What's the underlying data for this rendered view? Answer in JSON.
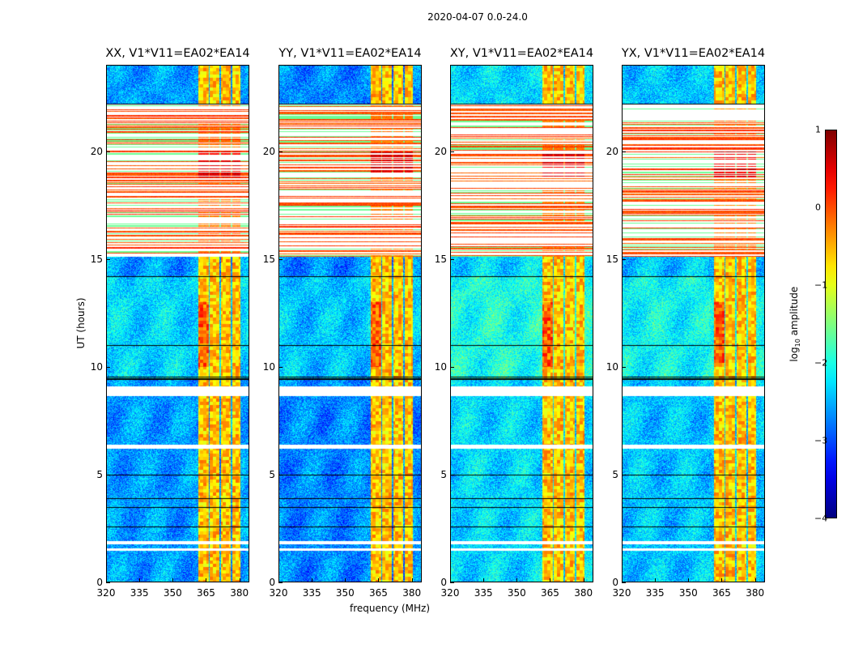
{
  "figure_title": "2020-04-07 0.0-24.0",
  "chart_data": {
    "type": "heatmap",
    "title": "2020-04-07 0.0-24.0",
    "xlabel": "frequency (MHz)",
    "ylabel": "UT (hours)",
    "xlim": [
      320,
      384.5
    ],
    "ylim": [
      0,
      24
    ],
    "xticks": [
      320,
      335,
      350,
      365,
      380
    ],
    "yticks": [
      0,
      5,
      10,
      15,
      20
    ],
    "colormap": "jet",
    "colorbar": {
      "label_main": "log",
      "label_sub": "10",
      "label_rest": " amplitude",
      "range": [
        -4,
        1
      ],
      "ticks": [
        "1",
        "0",
        "−1",
        "−2",
        "−3",
        "−4"
      ]
    },
    "panels": [
      {
        "title": "XX, V1*V11=EA02*EA14",
        "background_log_amp": -2.6
      },
      {
        "title": "YY, V1*V11=EA02*EA14",
        "background_log_amp": -2.7
      },
      {
        "title": "XY, V1*V11=EA02*EA14",
        "background_log_amp": -2.3
      },
      {
        "title": "YX, V1*V11=EA02*EA14",
        "background_log_amp": -2.4
      }
    ],
    "rfi_bands_mhz": [
      [
        361.3,
        366.0
      ],
      [
        366.6,
        371.0
      ],
      [
        371.6,
        376.0
      ],
      [
        376.6,
        380.4
      ]
    ],
    "rfi_log_amp": -0.6,
    "flagged_hours": [
      [
        1.5,
        1.6
      ],
      [
        1.8,
        1.95
      ],
      [
        6.2,
        6.4
      ],
      [
        8.65,
        9.1
      ]
    ],
    "striped_rfi_period_hours": [
      15.1,
      22.2
    ],
    "dropout_lines_hours": [
      2.6,
      3.5,
      3.9,
      5.0,
      9.45,
      9.55,
      11.0,
      14.2,
      22.2
    ]
  }
}
